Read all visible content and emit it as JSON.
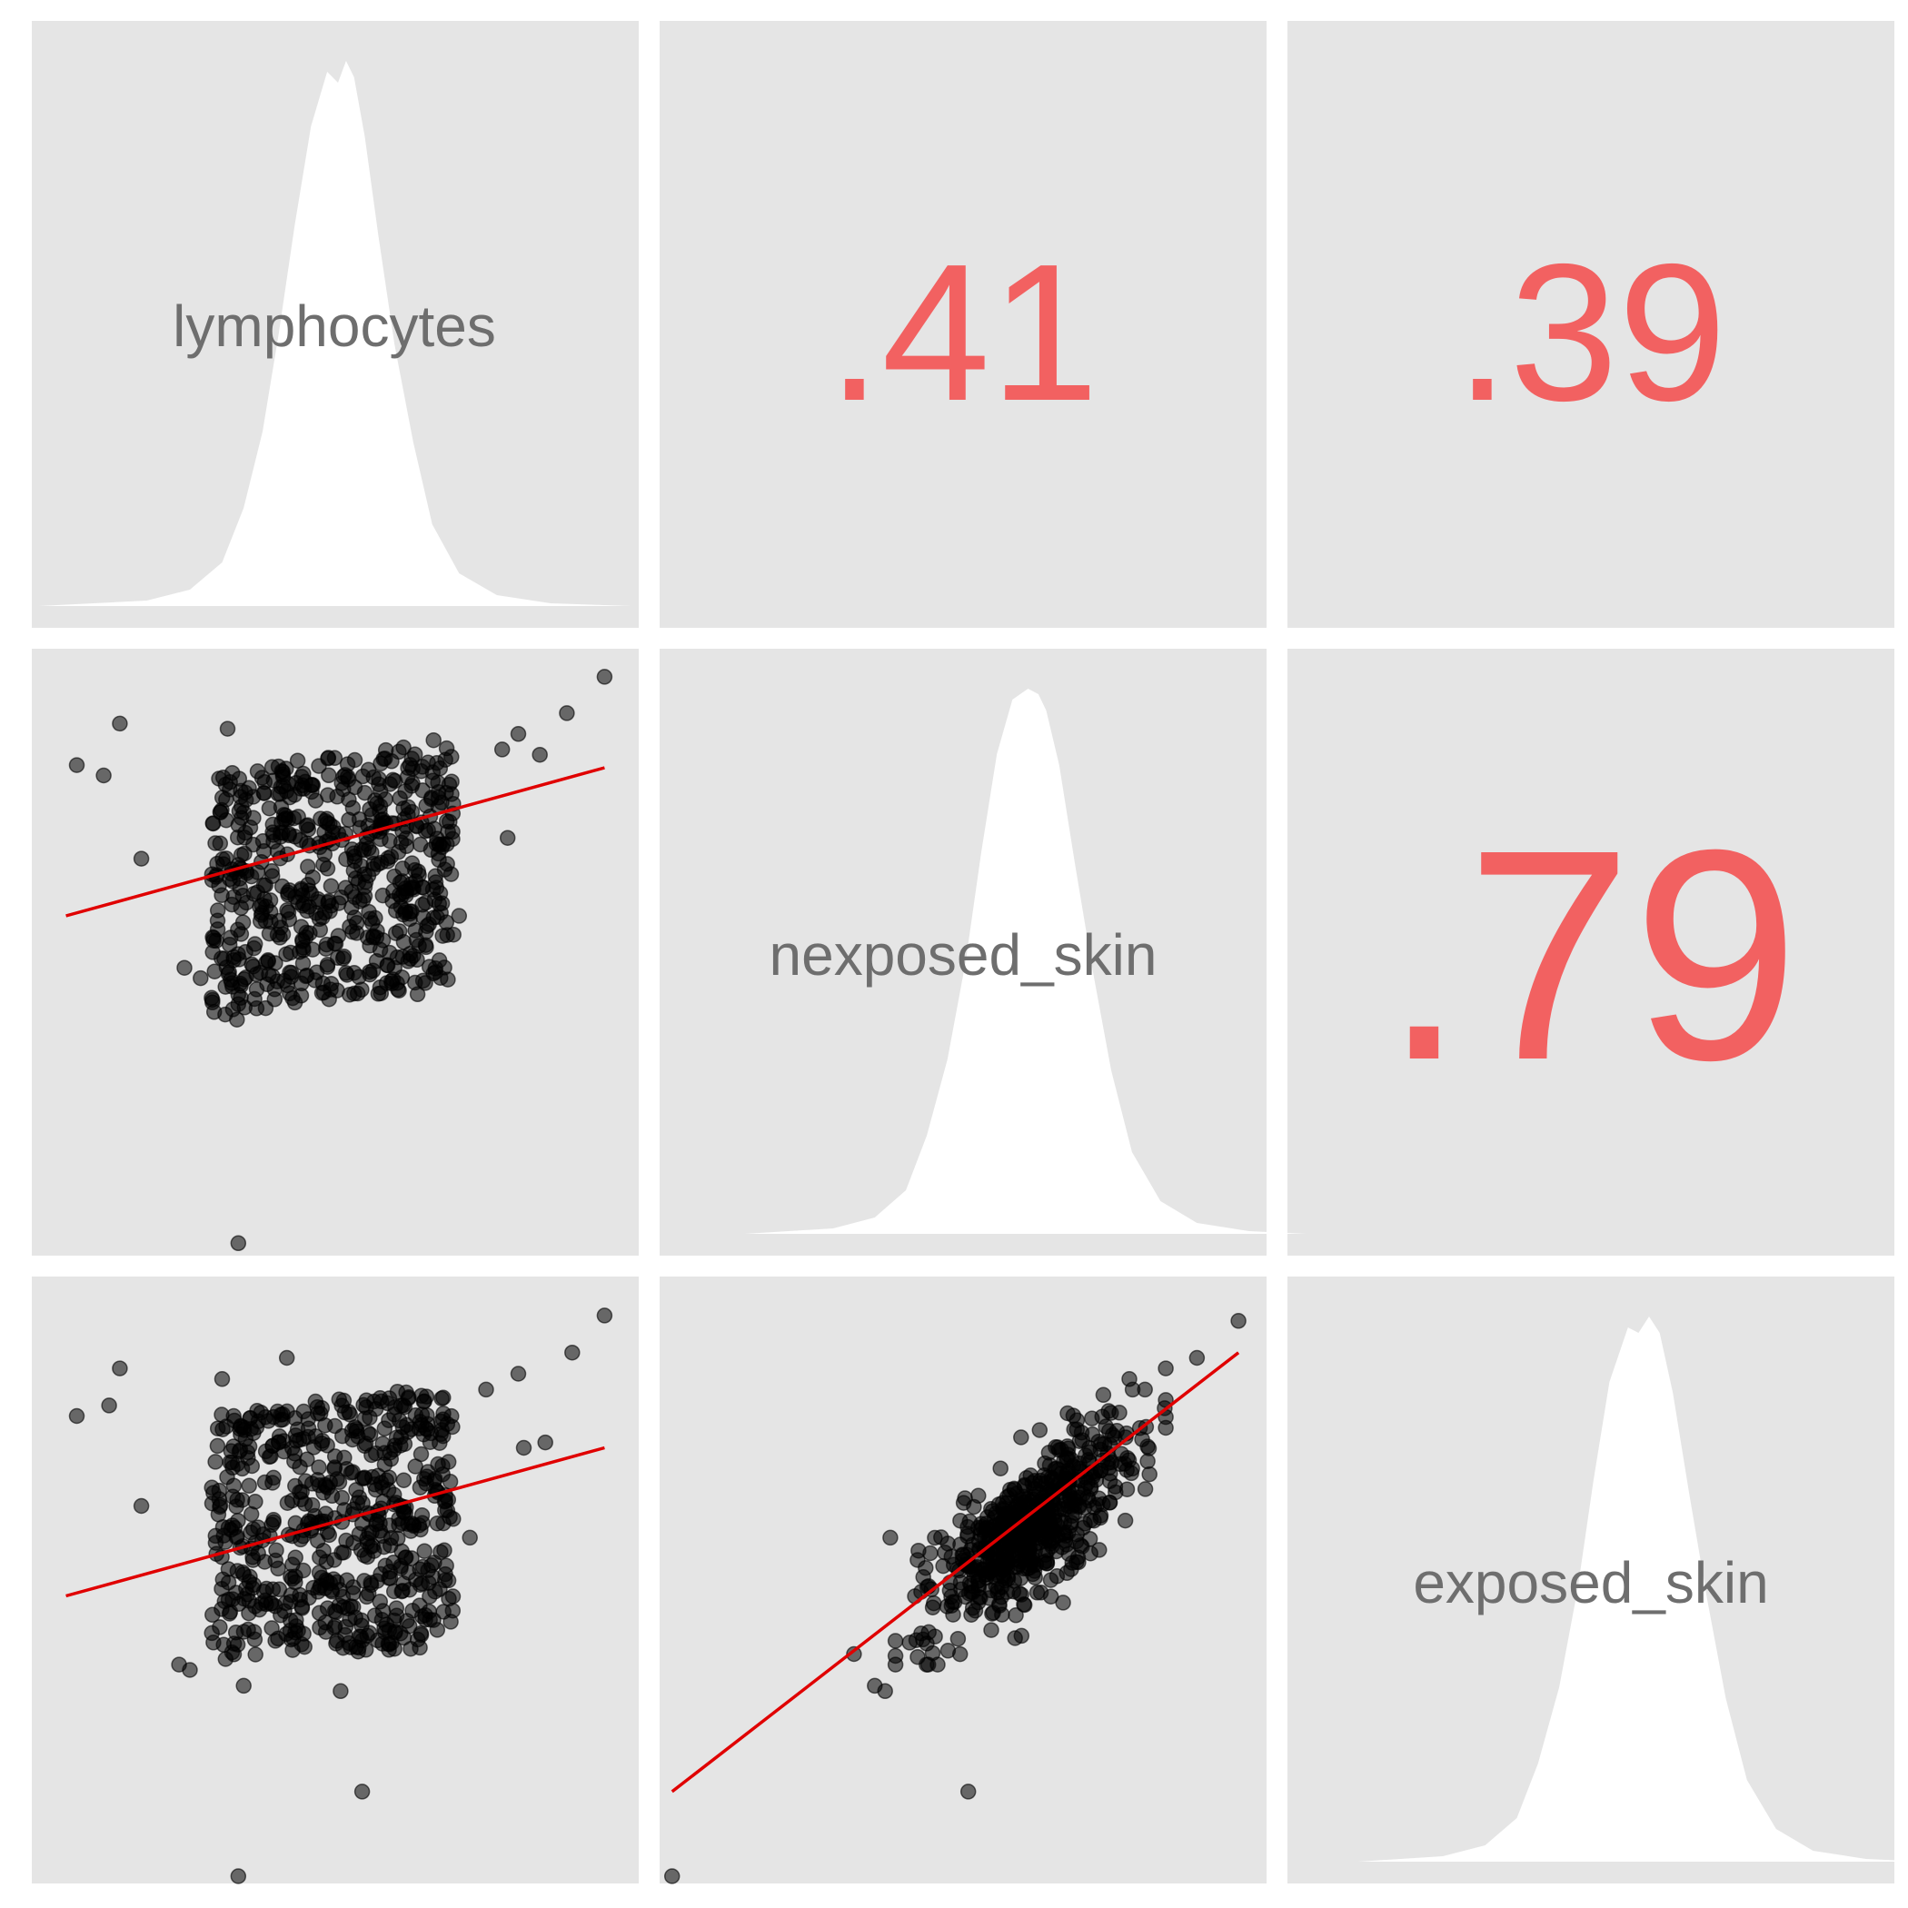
{
  "variables": [
    "lymphocytes",
    "nexposed_skin",
    "exposed_skin"
  ],
  "colors": {
    "panel_background": "#e5e5e5",
    "correlation_text": "#f26161",
    "label_text": "#6e6e6e",
    "points": "#000000",
    "fit_line": "#e00000",
    "density_fill": "#ffffff"
  },
  "chart_data": {
    "type": "scatter",
    "layout": "pairs-matrix",
    "grid": false,
    "legend": "none",
    "variables": [
      "lymphocytes",
      "nexposed_skin",
      "exposed_skin"
    ],
    "diagonal": "density",
    "upper": "correlation",
    "lower": "scatter-with-linear-fit",
    "correlations": [
      {
        "row": 0,
        "col": 1,
        "x": "nexposed_skin",
        "y": "lymphocytes",
        "label": ".41",
        "value": 0.41
      },
      {
        "row": 0,
        "col": 2,
        "x": "exposed_skin",
        "y": "lymphocytes",
        "label": ".39",
        "value": 0.39
      },
      {
        "row": 1,
        "col": 2,
        "x": "exposed_skin",
        "y": "nexposed_skin",
        "label": ".79",
        "value": 0.79
      }
    ],
    "ranges": {
      "lymphocytes": [
        -5.5,
        5.5
      ],
      "nexposed_skin": [
        -7.0,
        4.4
      ],
      "exposed_skin": [
        -6.6,
        4.6
      ]
    },
    "densities": [
      {
        "variable": "lymphocytes",
        "x": [
          -5.5,
          -3.5,
          -2.7,
          -2.1,
          -1.7,
          -1.35,
          -1.05,
          -0.75,
          -0.45,
          -0.15,
          0.05,
          0.2,
          0.35,
          0.55,
          0.8,
          1.1,
          1.45,
          1.8,
          2.3,
          3.0,
          4.0,
          5.5
        ],
        "y": [
          0.0,
          0.01,
          0.03,
          0.08,
          0.18,
          0.32,
          0.5,
          0.7,
          0.88,
          0.98,
          0.96,
          1.0,
          0.97,
          0.86,
          0.68,
          0.48,
          0.3,
          0.15,
          0.06,
          0.02,
          0.005,
          0.0
        ]
      },
      {
        "variable": "nexposed_skin",
        "x": [
          -5.5,
          -3.8,
          -3.0,
          -2.4,
          -2.0,
          -1.6,
          -1.25,
          -0.95,
          -0.65,
          -0.35,
          -0.05,
          0.15,
          0.3,
          0.55,
          0.85,
          1.2,
          1.55,
          1.95,
          2.5,
          3.2,
          4.2,
          5.3
        ],
        "y": [
          0.0,
          0.01,
          0.03,
          0.08,
          0.18,
          0.32,
          0.5,
          0.7,
          0.88,
          0.98,
          1.0,
          0.99,
          0.96,
          0.86,
          0.68,
          0.48,
          0.3,
          0.15,
          0.06,
          0.02,
          0.005,
          0.0
        ]
      },
      {
        "variable": "exposed_skin",
        "x": [
          -5.4,
          -3.8,
          -3.0,
          -2.4,
          -2.0,
          -1.6,
          -1.25,
          -0.95,
          -0.65,
          -0.3,
          -0.1,
          0.1,
          0.3,
          0.55,
          0.85,
          1.2,
          1.55,
          1.95,
          2.5,
          3.2,
          4.2,
          5.3
        ],
        "y": [
          0.0,
          0.01,
          0.03,
          0.08,
          0.18,
          0.32,
          0.5,
          0.7,
          0.88,
          0.98,
          0.97,
          1.0,
          0.97,
          0.86,
          0.68,
          0.48,
          0.3,
          0.15,
          0.06,
          0.02,
          0.005,
          0.0
        ]
      }
    ],
    "scatter": [
      {
        "row": 1,
        "col": 0,
        "x": "lymphocytes",
        "y": "nexposed_skin",
        "cluster": {
          "x_range": [
            -2.3,
            2.2
          ],
          "y_range": [
            -2.2,
            2.5
          ],
          "n": 600
        },
        "outliers": [
          [
            -4.0,
            3.1
          ],
          [
            -4.8,
            2.3
          ],
          [
            -4.3,
            2.1
          ],
          [
            -3.6,
            0.5
          ],
          [
            -2.0,
            3.0
          ],
          [
            -2.8,
            -1.6
          ],
          [
            -2.5,
            -1.8
          ],
          [
            -1.9,
            -2.4
          ],
          [
            -1.8,
            -2.3
          ],
          [
            -1.5,
            -2.2
          ],
          [
            0.2,
            -1.7
          ],
          [
            0.8,
            -2.1
          ],
          [
            1.1,
            -1.6
          ],
          [
            2.3,
            -0.6
          ],
          [
            3.1,
            2.6
          ],
          [
            3.4,
            2.9
          ],
          [
            3.8,
            2.5
          ],
          [
            4.3,
            3.3
          ],
          [
            5.0,
            4.0
          ],
          [
            3.2,
            0.9
          ],
          [
            -1.8,
            -6.9
          ]
        ],
        "fit": {
          "x1": -5.0,
          "y1": -0.6,
          "x2": 5.0,
          "y2": 2.25
        }
      },
      {
        "row": 2,
        "col": 0,
        "x": "lymphocytes",
        "y": "exposed_skin",
        "cluster": {
          "x_range": [
            -2.3,
            2.2
          ],
          "y_range": [
            -2.4,
            2.4
          ],
          "n": 600
        },
        "outliers": [
          [
            -4.0,
            3.0
          ],
          [
            -4.8,
            2.1
          ],
          [
            -4.2,
            2.3
          ],
          [
            -3.6,
            0.4
          ],
          [
            -2.1,
            2.8
          ],
          [
            -0.9,
            3.2
          ],
          [
            -2.9,
            -2.6
          ],
          [
            -2.7,
            -2.7
          ],
          [
            -1.7,
            -3.0
          ],
          [
            0.1,
            -3.1
          ],
          [
            0.5,
            -5.0
          ],
          [
            1.1,
            -2.3
          ],
          [
            1.4,
            -2.3
          ],
          [
            2.8,
            2.6
          ],
          [
            3.4,
            2.9
          ],
          [
            3.5,
            1.5
          ],
          [
            3.9,
            1.6
          ],
          [
            4.4,
            3.3
          ],
          [
            5.0,
            4.0
          ],
          [
            2.5,
            -0.2
          ],
          [
            -1.8,
            -6.6
          ]
        ],
        "fit": {
          "x1": -5.0,
          "y1": -1.3,
          "x2": 5.0,
          "y2": 1.5
        }
      },
      {
        "row": 2,
        "col": 1,
        "x": "nexposed_skin",
        "y": "exposed_skin",
        "cluster": {
          "center": [
            0.0,
            0.0
          ],
          "slope": 0.95,
          "spread": 1.0,
          "n": 600
        },
        "outliers": [
          [
            -3.4,
            -2.4
          ],
          [
            -3.0,
            -3.0
          ],
          [
            -2.8,
            -3.1
          ],
          [
            -2.0,
            -2.2
          ],
          [
            -2.7,
            -0.2
          ],
          [
            -1.2,
            -5.0
          ],
          [
            1.4,
            2.5
          ],
          [
            1.9,
            2.8
          ],
          [
            2.2,
            2.6
          ],
          [
            2.6,
            3.0
          ],
          [
            3.2,
            3.2
          ],
          [
            4.0,
            3.9
          ],
          [
            -6.9,
            -6.6
          ]
        ],
        "fit": {
          "x1": -6.9,
          "y1": -5.0,
          "x2": 4.0,
          "y2": 3.3
        }
      }
    ]
  }
}
